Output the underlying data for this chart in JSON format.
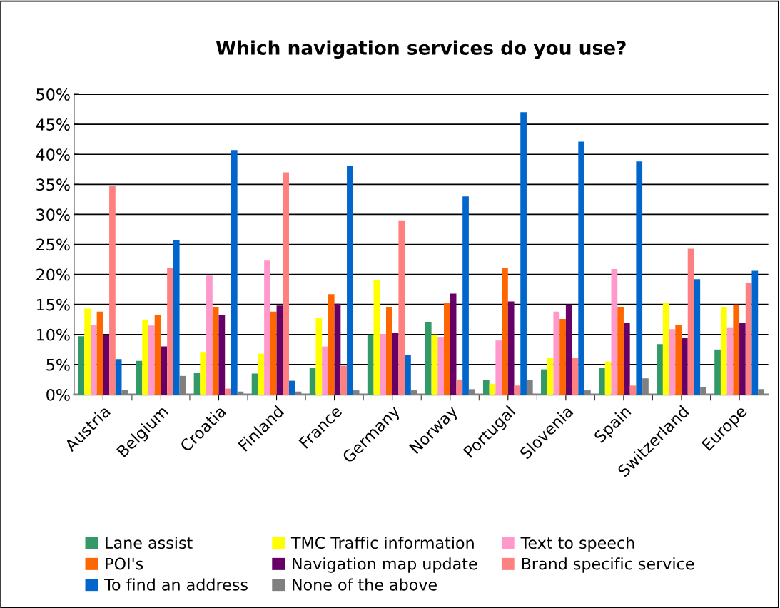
{
  "chart_data": {
    "type": "bar",
    "title": "Which navigation services do you use?",
    "categories": [
      "Austria",
      "Belgium",
      "Croatia",
      "Finland",
      "France",
      "Germany",
      "Norway",
      "Portugal",
      "Slovenia",
      "Spain",
      "Switzerland",
      "Europe"
    ],
    "series": [
      {
        "name": "Lane assist",
        "color": "#339966",
        "values": [
          9.7,
          5.6,
          3.6,
          3.5,
          4.5,
          10.0,
          12.1,
          2.4,
          4.2,
          4.5,
          8.4,
          7.5
        ]
      },
      {
        "name": "TMC Traffic information",
        "color": "#ffff00",
        "values": [
          14.3,
          12.5,
          7.1,
          6.8,
          12.7,
          19.1,
          10.0,
          1.8,
          6.1,
          5.5,
          15.3,
          14.6
        ]
      },
      {
        "name": "Text to speech",
        "color": "#ff99cc",
        "values": [
          11.6,
          11.5,
          19.8,
          22.3,
          8.0,
          10.1,
          9.6,
          9.0,
          13.8,
          20.9,
          10.9,
          11.2
        ]
      },
      {
        "name": "POI's",
        "color": "#ff6600",
        "values": [
          13.8,
          13.3,
          14.6,
          13.8,
          16.7,
          14.6,
          15.3,
          21.1,
          12.6,
          14.6,
          11.6,
          15.0
        ]
      },
      {
        "name": "Navigation map update",
        "color": "#660066",
        "values": [
          10.0,
          8.0,
          13.3,
          14.8,
          15.1,
          10.2,
          16.8,
          15.5,
          15.0,
          12.0,
          9.4,
          12.0
        ]
      },
      {
        "name": "Brand specific service",
        "color": "#ff8080",
        "values": [
          34.7,
          21.1,
          1.0,
          37.0,
          4.8,
          29.0,
          2.5,
          1.5,
          6.1,
          1.5,
          24.3,
          18.6
        ]
      },
      {
        "name": "To find an address",
        "color": "#0066cc",
        "values": [
          5.9,
          25.7,
          40.7,
          2.3,
          38.0,
          6.6,
          33.0,
          47.0,
          42.1,
          38.8,
          19.2,
          20.6
        ]
      },
      {
        "name": "None of the above",
        "color": "#808080",
        "values": [
          0.7,
          3.1,
          0.5,
          0.5,
          0.7,
          0.7,
          0.9,
          2.4,
          0.7,
          2.7,
          1.3,
          0.9
        ]
      }
    ],
    "ylim": [
      0,
      50
    ],
    "yticks": [
      {
        "value": 0,
        "label": "0%"
      },
      {
        "value": 5,
        "label": "5%"
      },
      {
        "value": 10,
        "label": "10%"
      },
      {
        "value": 15,
        "label": "15%"
      },
      {
        "value": 20,
        "label": "20%"
      },
      {
        "value": 25,
        "label": "25%"
      },
      {
        "value": 30,
        "label": "30%"
      },
      {
        "value": 35,
        "label": "35%"
      },
      {
        "value": 40,
        "label": "40%"
      },
      {
        "value": 45,
        "label": "45%"
      },
      {
        "value": 50,
        "label": "50%"
      }
    ],
    "grid": "y",
    "legend": "bottom"
  }
}
